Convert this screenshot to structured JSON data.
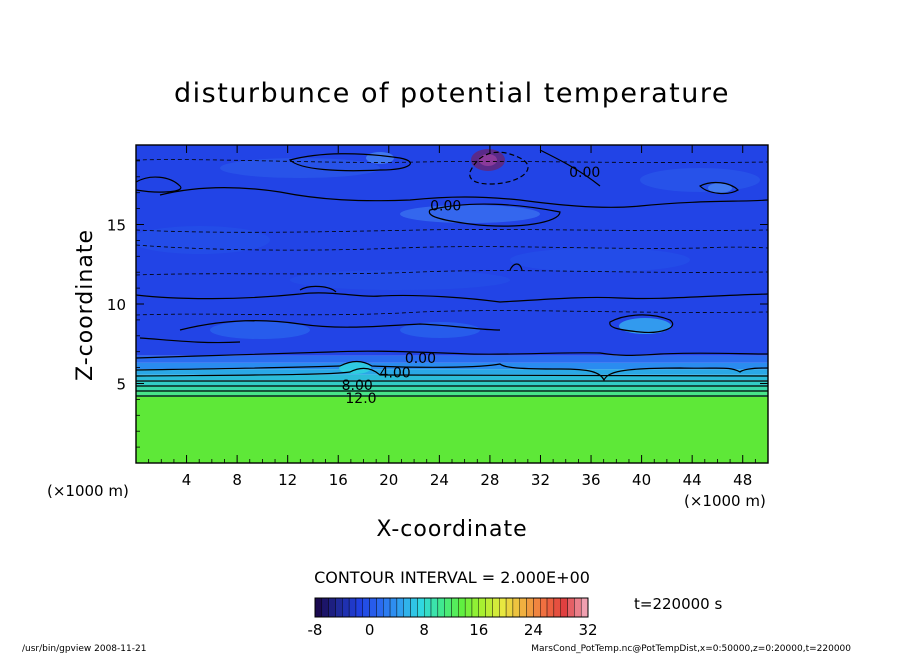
{
  "chart_data": {
    "type": "heatmap",
    "title": "disturbunce of potential temperature",
    "xlabel": "X-coordinate",
    "ylabel": "Z-coordinate",
    "x_unit_left": "(×1000 m)",
    "x_unit_right": "(×1000 m)",
    "xlim": [
      0,
      50
    ],
    "ylim": [
      0,
      20
    ],
    "x_ticks": [
      4,
      8,
      12,
      16,
      20,
      24,
      28,
      32,
      36,
      40,
      44,
      48
    ],
    "y_ticks": [
      5,
      10,
      15
    ],
    "contour_interval_text": "CONTOUR INTERVAL = 2.000E+00",
    "time_text": "t=220000 s",
    "colorbar": {
      "min": -8,
      "max": 32,
      "ticks": [
        -8,
        0,
        8,
        16,
        24,
        32
      ],
      "colors": [
        "#1a0a50",
        "#1f2a9a",
        "#2040e0",
        "#2a6af0",
        "#30a0f0",
        "#30d8e0",
        "#40e890",
        "#60f040",
        "#a8f030",
        "#e8e840",
        "#f0b040",
        "#f07040",
        "#e04040",
        "#f0a0b0"
      ]
    },
    "contour_labels": [
      {
        "text": "0.00",
        "x": 24.5,
        "z": 16.2
      },
      {
        "text": "0.00",
        "x": 35.5,
        "z": 18.3
      },
      {
        "text": "0.00",
        "x": 22.5,
        "z": 6.6
      },
      {
        "text": "4.00",
        "x": 20.5,
        "z": 5.7
      },
      {
        "text": "8.00",
        "x": 17.5,
        "z": 4.9
      },
      {
        "text": "12.0",
        "x": 17.8,
        "z": 4.1
      }
    ],
    "layers": [
      {
        "z0": 0,
        "z1": 4.15,
        "value": 14,
        "color": "#5ee838"
      },
      {
        "z0": 4.15,
        "z1": 4.5,
        "value": 12,
        "color": "#48e48a"
      },
      {
        "z0": 4.5,
        "z1": 4.85,
        "value": 10,
        "color": "#3ad8a8"
      },
      {
        "z0": 4.85,
        "z1": 5.2,
        "value": 8,
        "color": "#32ccc6"
      },
      {
        "z0": 5.2,
        "z1": 5.55,
        "value": 6,
        "color": "#2cbcd8"
      },
      {
        "z0": 5.55,
        "z1": 5.9,
        "value": 4,
        "color": "#2aa8e6"
      },
      {
        "z0": 5.9,
        "z1": 6.3,
        "value": 2,
        "color": "#2a8cf0"
      },
      {
        "z0": 6.3,
        "z1": 6.75,
        "value": 0,
        "color": "#2a6cf0"
      },
      {
        "z0": 6.75,
        "z1": 20,
        "value": -2,
        "color": "#2244e6"
      }
    ]
  },
  "footer": {
    "left": "/usr/bin/gpview   2008-11-21",
    "right": "MarsCond_PotTemp.nc@PotTempDist,x=0:50000,z=0:20000,t=220000"
  }
}
